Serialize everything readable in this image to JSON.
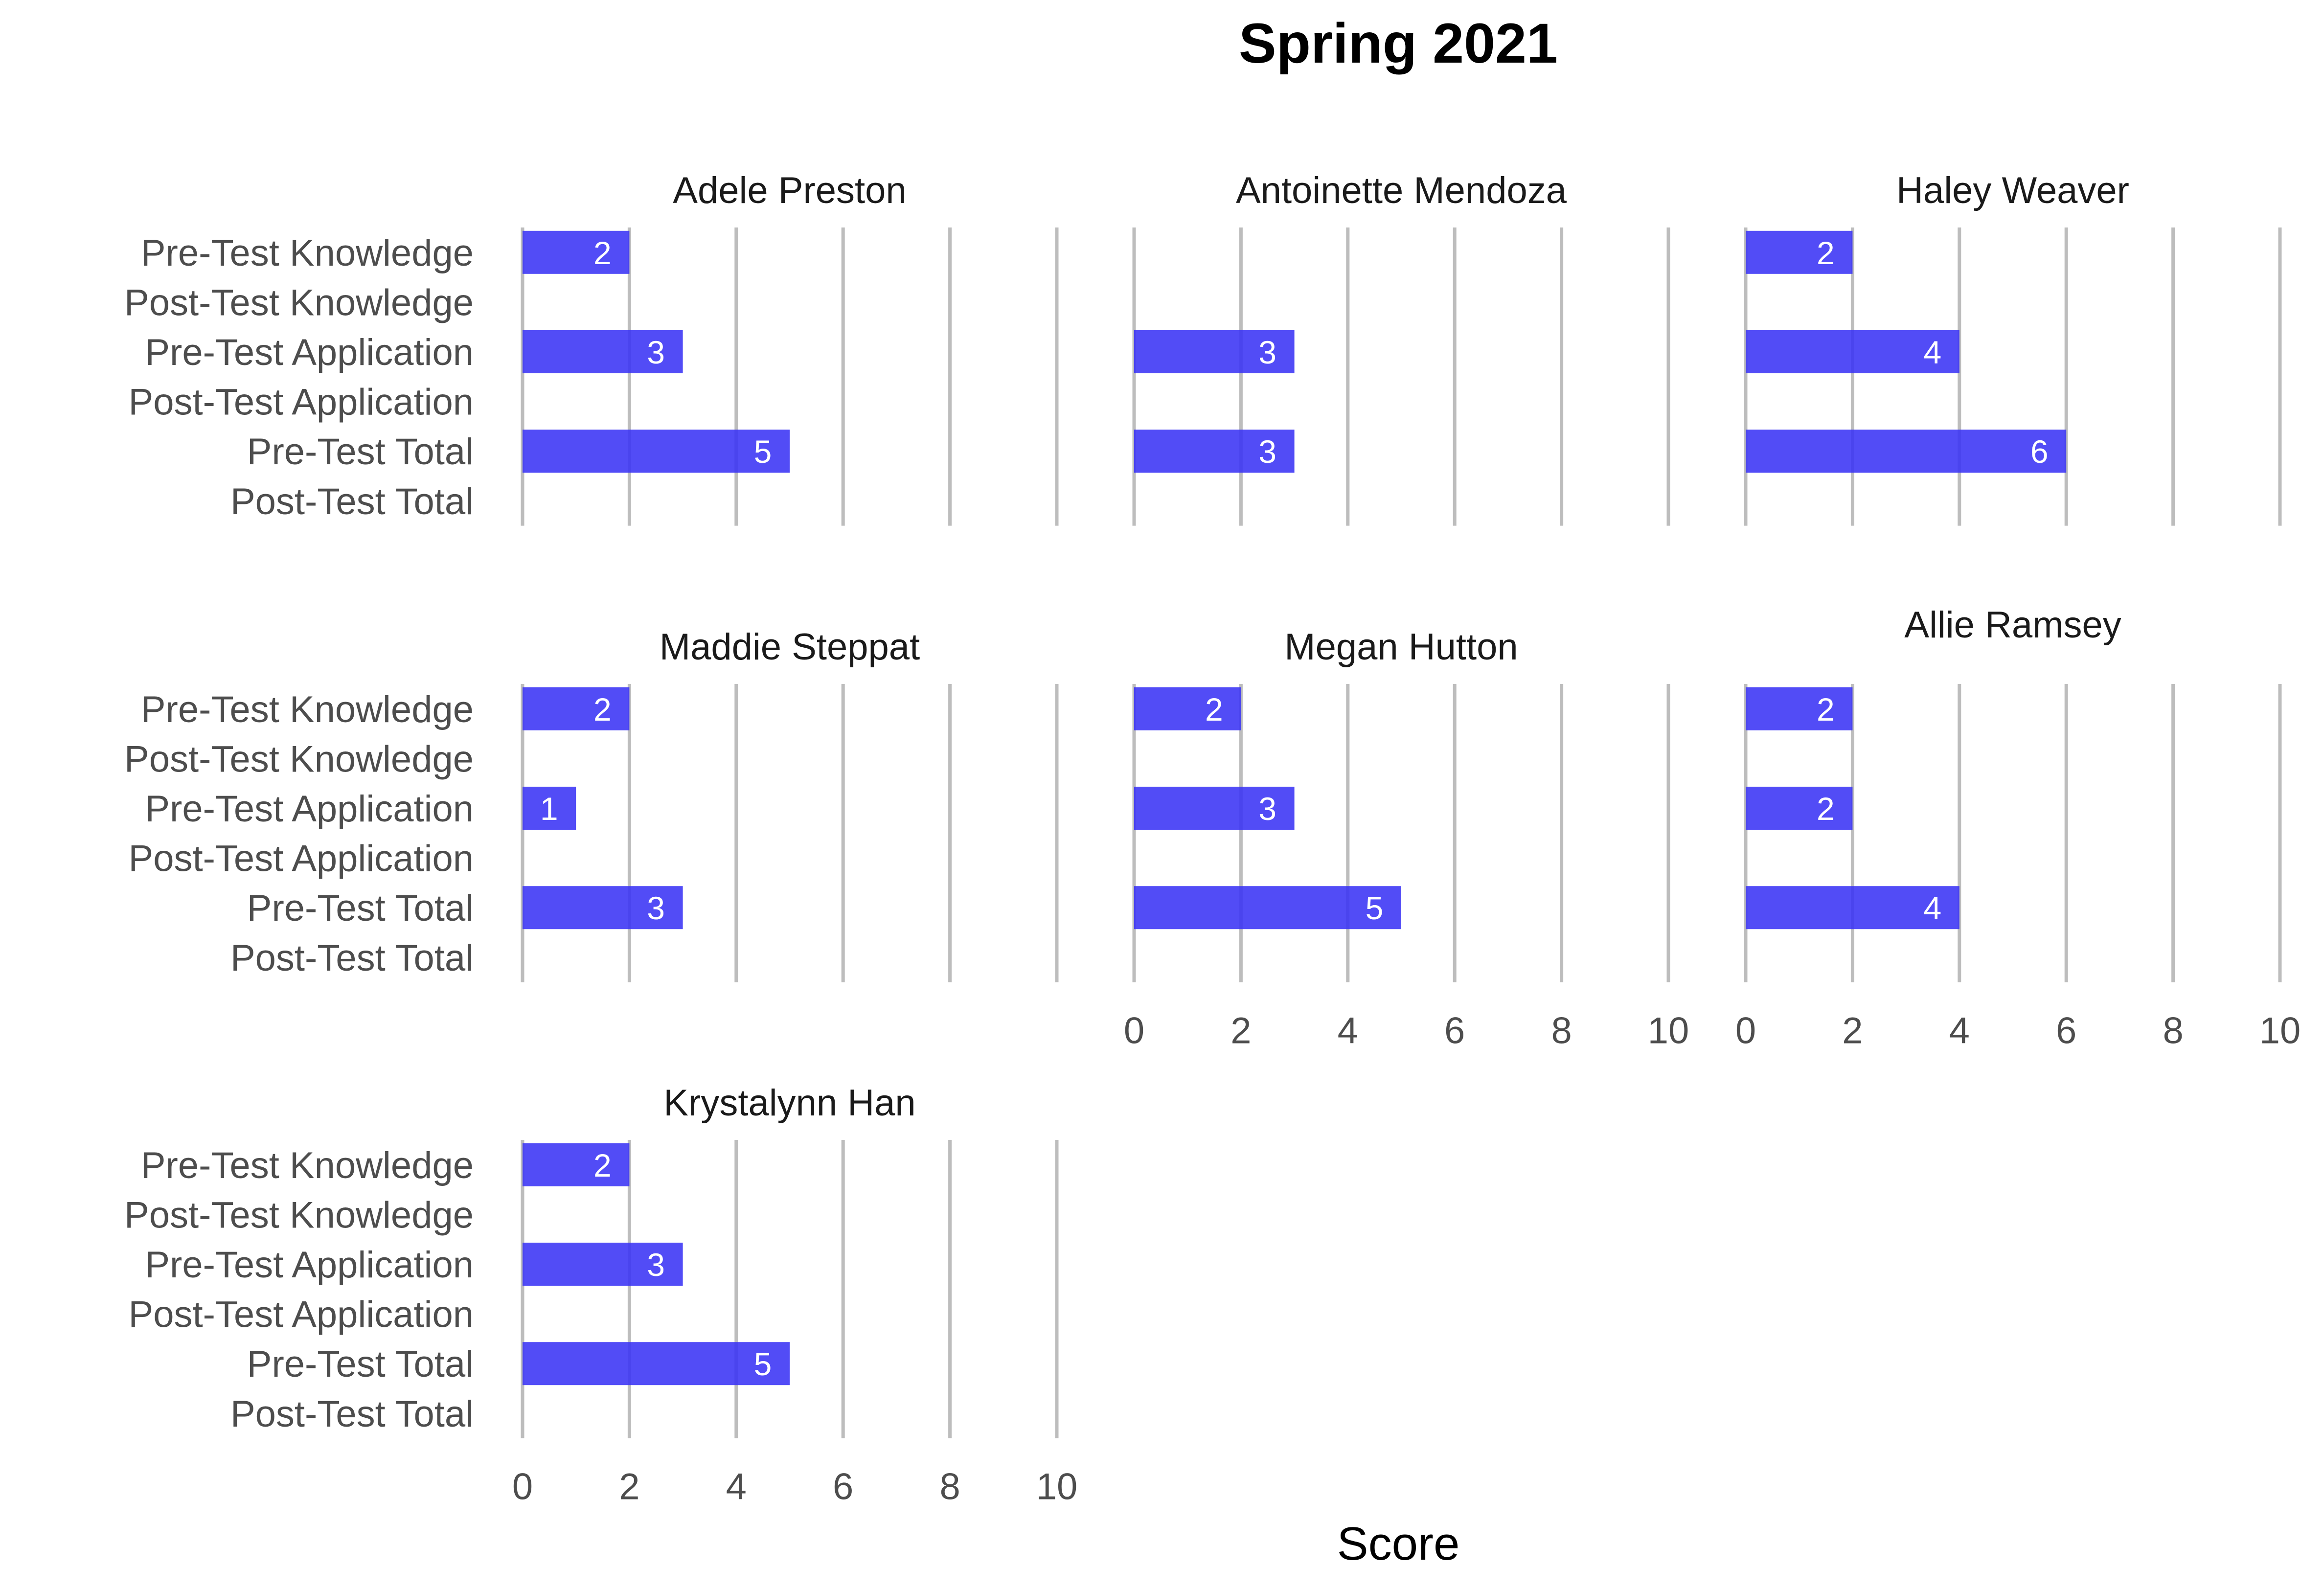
{
  "chart_data": {
    "type": "bar",
    "orientation": "horizontal",
    "title": "Spring 2021",
    "xlabel": "Score",
    "ylabel": "",
    "xlim": [
      0,
      10
    ],
    "xticks": [
      "0",
      "2",
      "4",
      "6",
      "8",
      "10"
    ],
    "grid": "vertical major lines",
    "legend": "none",
    "bar_color": "#3a33f5",
    "categories": [
      "Pre-Test Knowledge",
      "Post-Test Knowledge",
      "Pre-Test Application",
      "Post-Test Application",
      "Pre-Test Total",
      "Post-Test Total"
    ],
    "facets": [
      {
        "name": "Adele Preston",
        "values": [
          2,
          null,
          3,
          null,
          5,
          null
        ]
      },
      {
        "name": "Antoinette Mendoza",
        "values": [
          null,
          null,
          3,
          null,
          3,
          null
        ]
      },
      {
        "name": "Haley Weaver",
        "values": [
          2,
          null,
          4,
          null,
          6,
          null
        ]
      },
      {
        "name": "Maddie Steppat",
        "values": [
          2,
          null,
          1,
          null,
          3,
          null
        ]
      },
      {
        "name": "Megan Hutton",
        "values": [
          2,
          null,
          3,
          null,
          5,
          null
        ]
      },
      {
        "name": "Allie Ramsey",
        "values": [
          2,
          null,
          2,
          null,
          4,
          null
        ]
      },
      {
        "name": "Krystalynn Han",
        "values": [
          2,
          null,
          3,
          null,
          5,
          null
        ]
      }
    ]
  }
}
